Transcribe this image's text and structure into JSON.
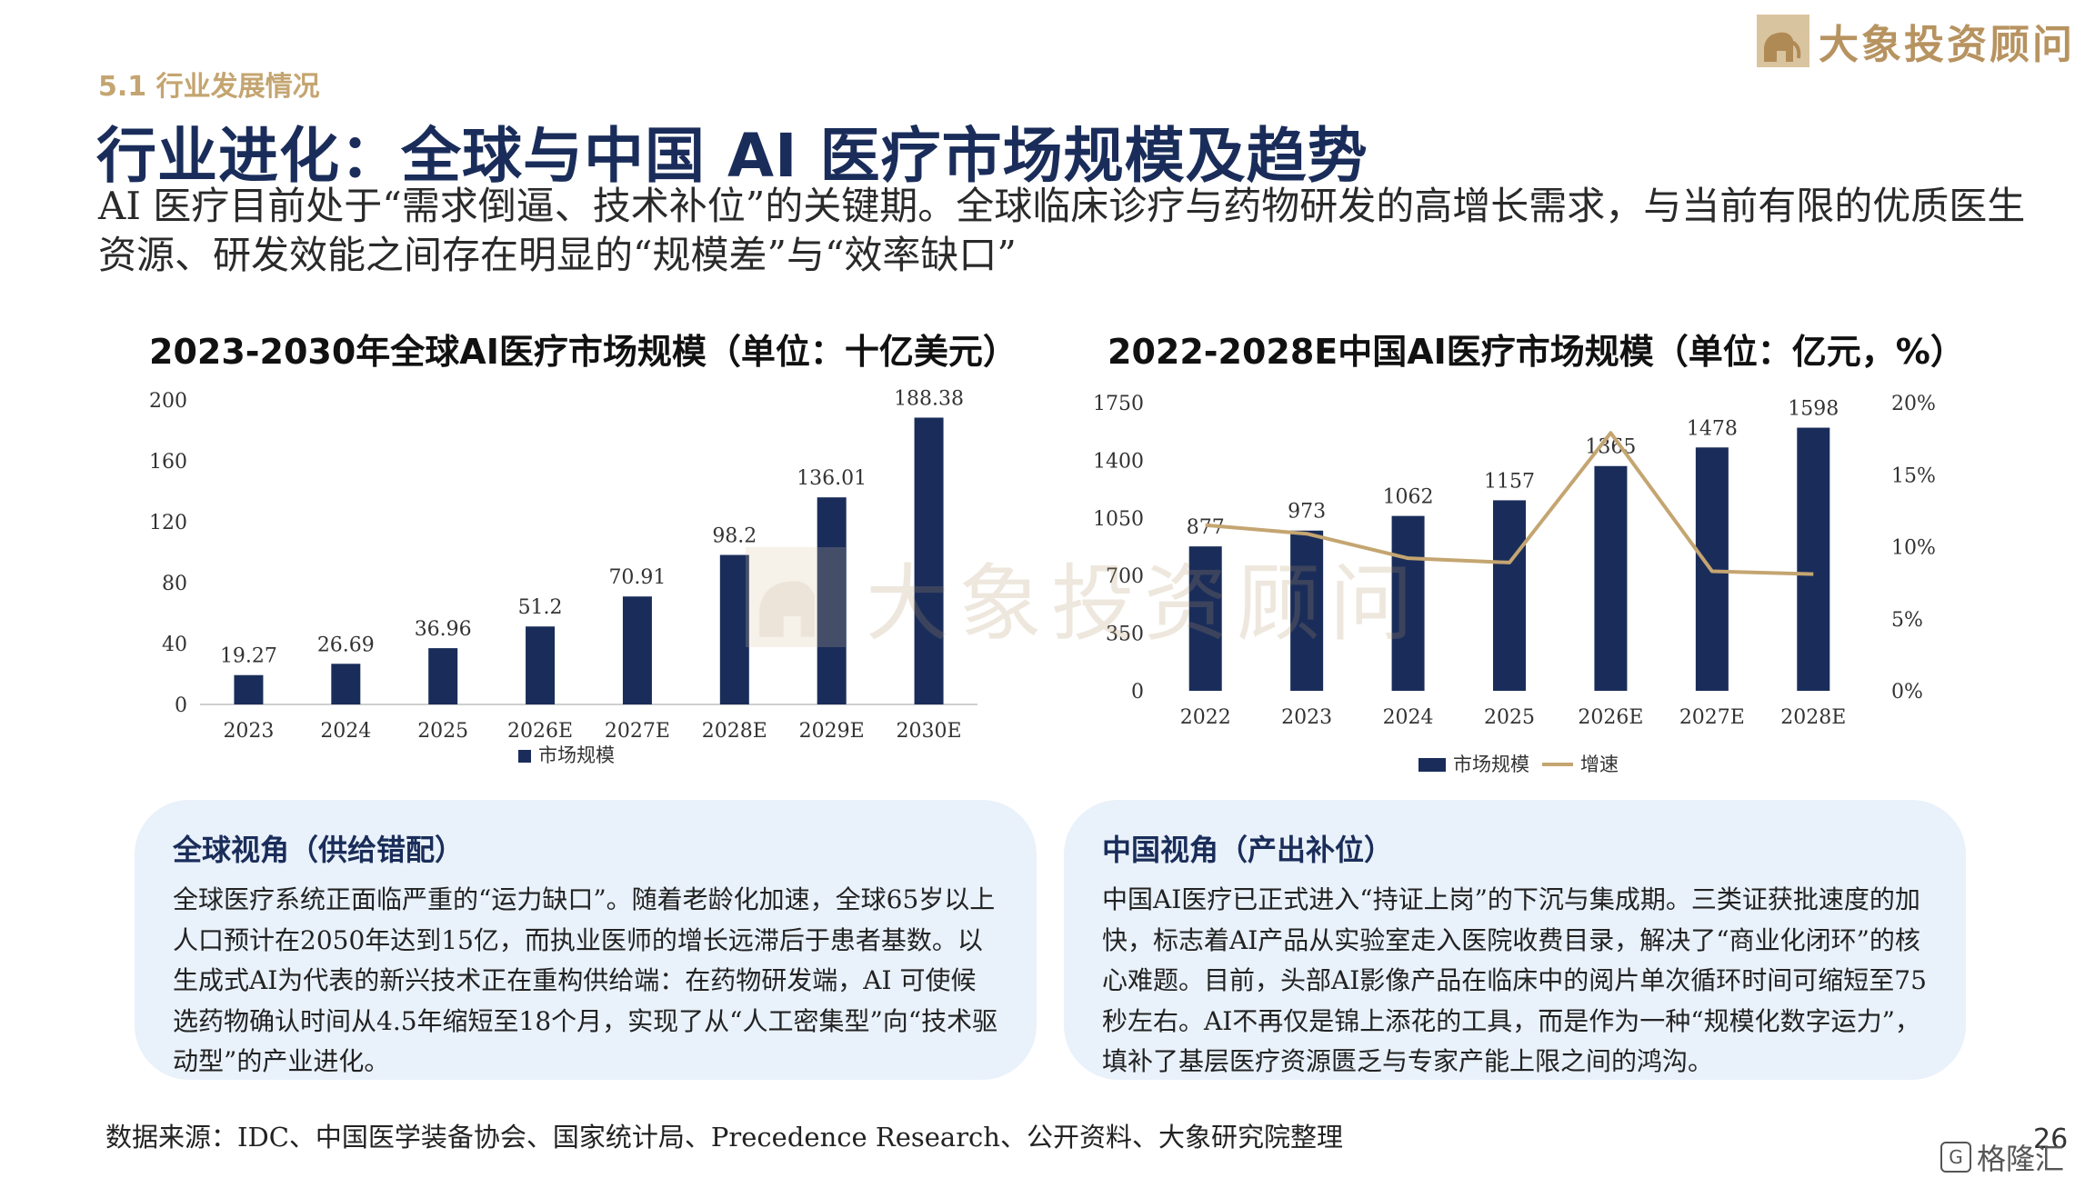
{
  "header": {
    "section": "5.1 行业发展情况",
    "title": "行业进化：全球与中国 AI 医疗市场规模及趋势",
    "subtitle": "AI 医疗目前处于“需求倒逼、技术补位”的关键期。全球临床诊疗与药物研发的高增长需求，与当前有限的优质医生资源、研发效能之间存在明显的“规模差”与“效率缺口”"
  },
  "brand": {
    "name": "大象投资顾问",
    "watermark": "大象投资顾问"
  },
  "colors": {
    "navy": "#1a2d5a",
    "gold": "#c4a571",
    "box_bg": "#e9f1fa"
  },
  "chart_data": [
    {
      "type": "bar",
      "title": "2023-2030年全球AI医疗市场规模（单位：十亿美元）",
      "categories": [
        "2023",
        "2024",
        "2025",
        "2026E",
        "2027E",
        "2028E",
        "2029E",
        "2030E"
      ],
      "series": [
        {
          "name": "市场规模",
          "values": [
            19.27,
            26.69,
            36.96,
            51.2,
            70.91,
            98.2,
            136.01,
            188.38
          ],
          "color": "#1a2d5a"
        }
      ],
      "value_labels": [
        "19.27",
        "26.69",
        "36.96",
        "51.2",
        "70.91",
        "98.2",
        "136.01",
        "188.38"
      ],
      "ylim": [
        0,
        200
      ],
      "yticks": [
        "0",
        "40",
        "80",
        "120",
        "160",
        "200"
      ],
      "legend": "bottom",
      "grid": false
    },
    {
      "type": "bar",
      "title": "2022-2028E中国AI医疗市场规模（单位：亿元，%）",
      "categories": [
        "2022",
        "2023",
        "2024",
        "2025",
        "2026E",
        "2027E",
        "2028E"
      ],
      "series": [
        {
          "name": "市场规模",
          "type": "bar",
          "values": [
            877,
            973,
            1062,
            1157,
            1365,
            1478,
            1598
          ],
          "color": "#1a2d5a"
        },
        {
          "name": "增速",
          "type": "line",
          "axis": "right",
          "values": [
            11.5,
            10.9,
            9.2,
            8.9,
            17.9,
            8.3,
            8.1
          ],
          "color": "#c4a571"
        }
      ],
      "value_labels": [
        "877",
        "973",
        "1062",
        "1157",
        "1365",
        "1478",
        "1598"
      ],
      "ylim": [
        0,
        1750
      ],
      "yticks": [
        "0",
        "350",
        "700",
        "1050",
        "1400",
        "1750"
      ],
      "y2lim": [
        0,
        20
      ],
      "y2ticks": [
        "0%",
        "5%",
        "10%",
        "15%",
        "20%"
      ],
      "legend": "bottom",
      "grid": false
    }
  ],
  "boxes": {
    "global": {
      "title": "全球视角（供给错配）",
      "body": "全球医疗系统正面临严重的“运力缺口”。随着老龄化加速，全球65岁以上人口预计在2050年达到15亿，而执业医师的增长远滞后于患者基数。以生成式AI为代表的新兴技术正在重构供给端：在药物研发端，AI 可使候选药物确认时间从4.5年缩短至18个月，实现了从“人工密集型”向“技术驱动型”的产业进化。"
    },
    "china": {
      "title": "中国视角（产出补位）",
      "body": "中国AI医疗已正式进入“持证上岗”的下沉与集成期。三类证获批速度的加快，标志着AI产品从实验室走入医院收费目录，解决了“商业化闭环”的核心难题。目前，头部AI影像产品在临床中的阅片单次循环时间可缩短至75秒左右。AI不再仅是锦上添花的工具，而是作为一种“规模化数字运力”，填补了基层医疗资源匮乏与专家产能上限之间的鸿沟。"
    }
  },
  "footer": {
    "source": "数据来源：IDC、中国医学装备协会、国家统计局、Precedence Research、公开资料、大象研究院整理",
    "page": "26",
    "badge": "格隆汇"
  }
}
